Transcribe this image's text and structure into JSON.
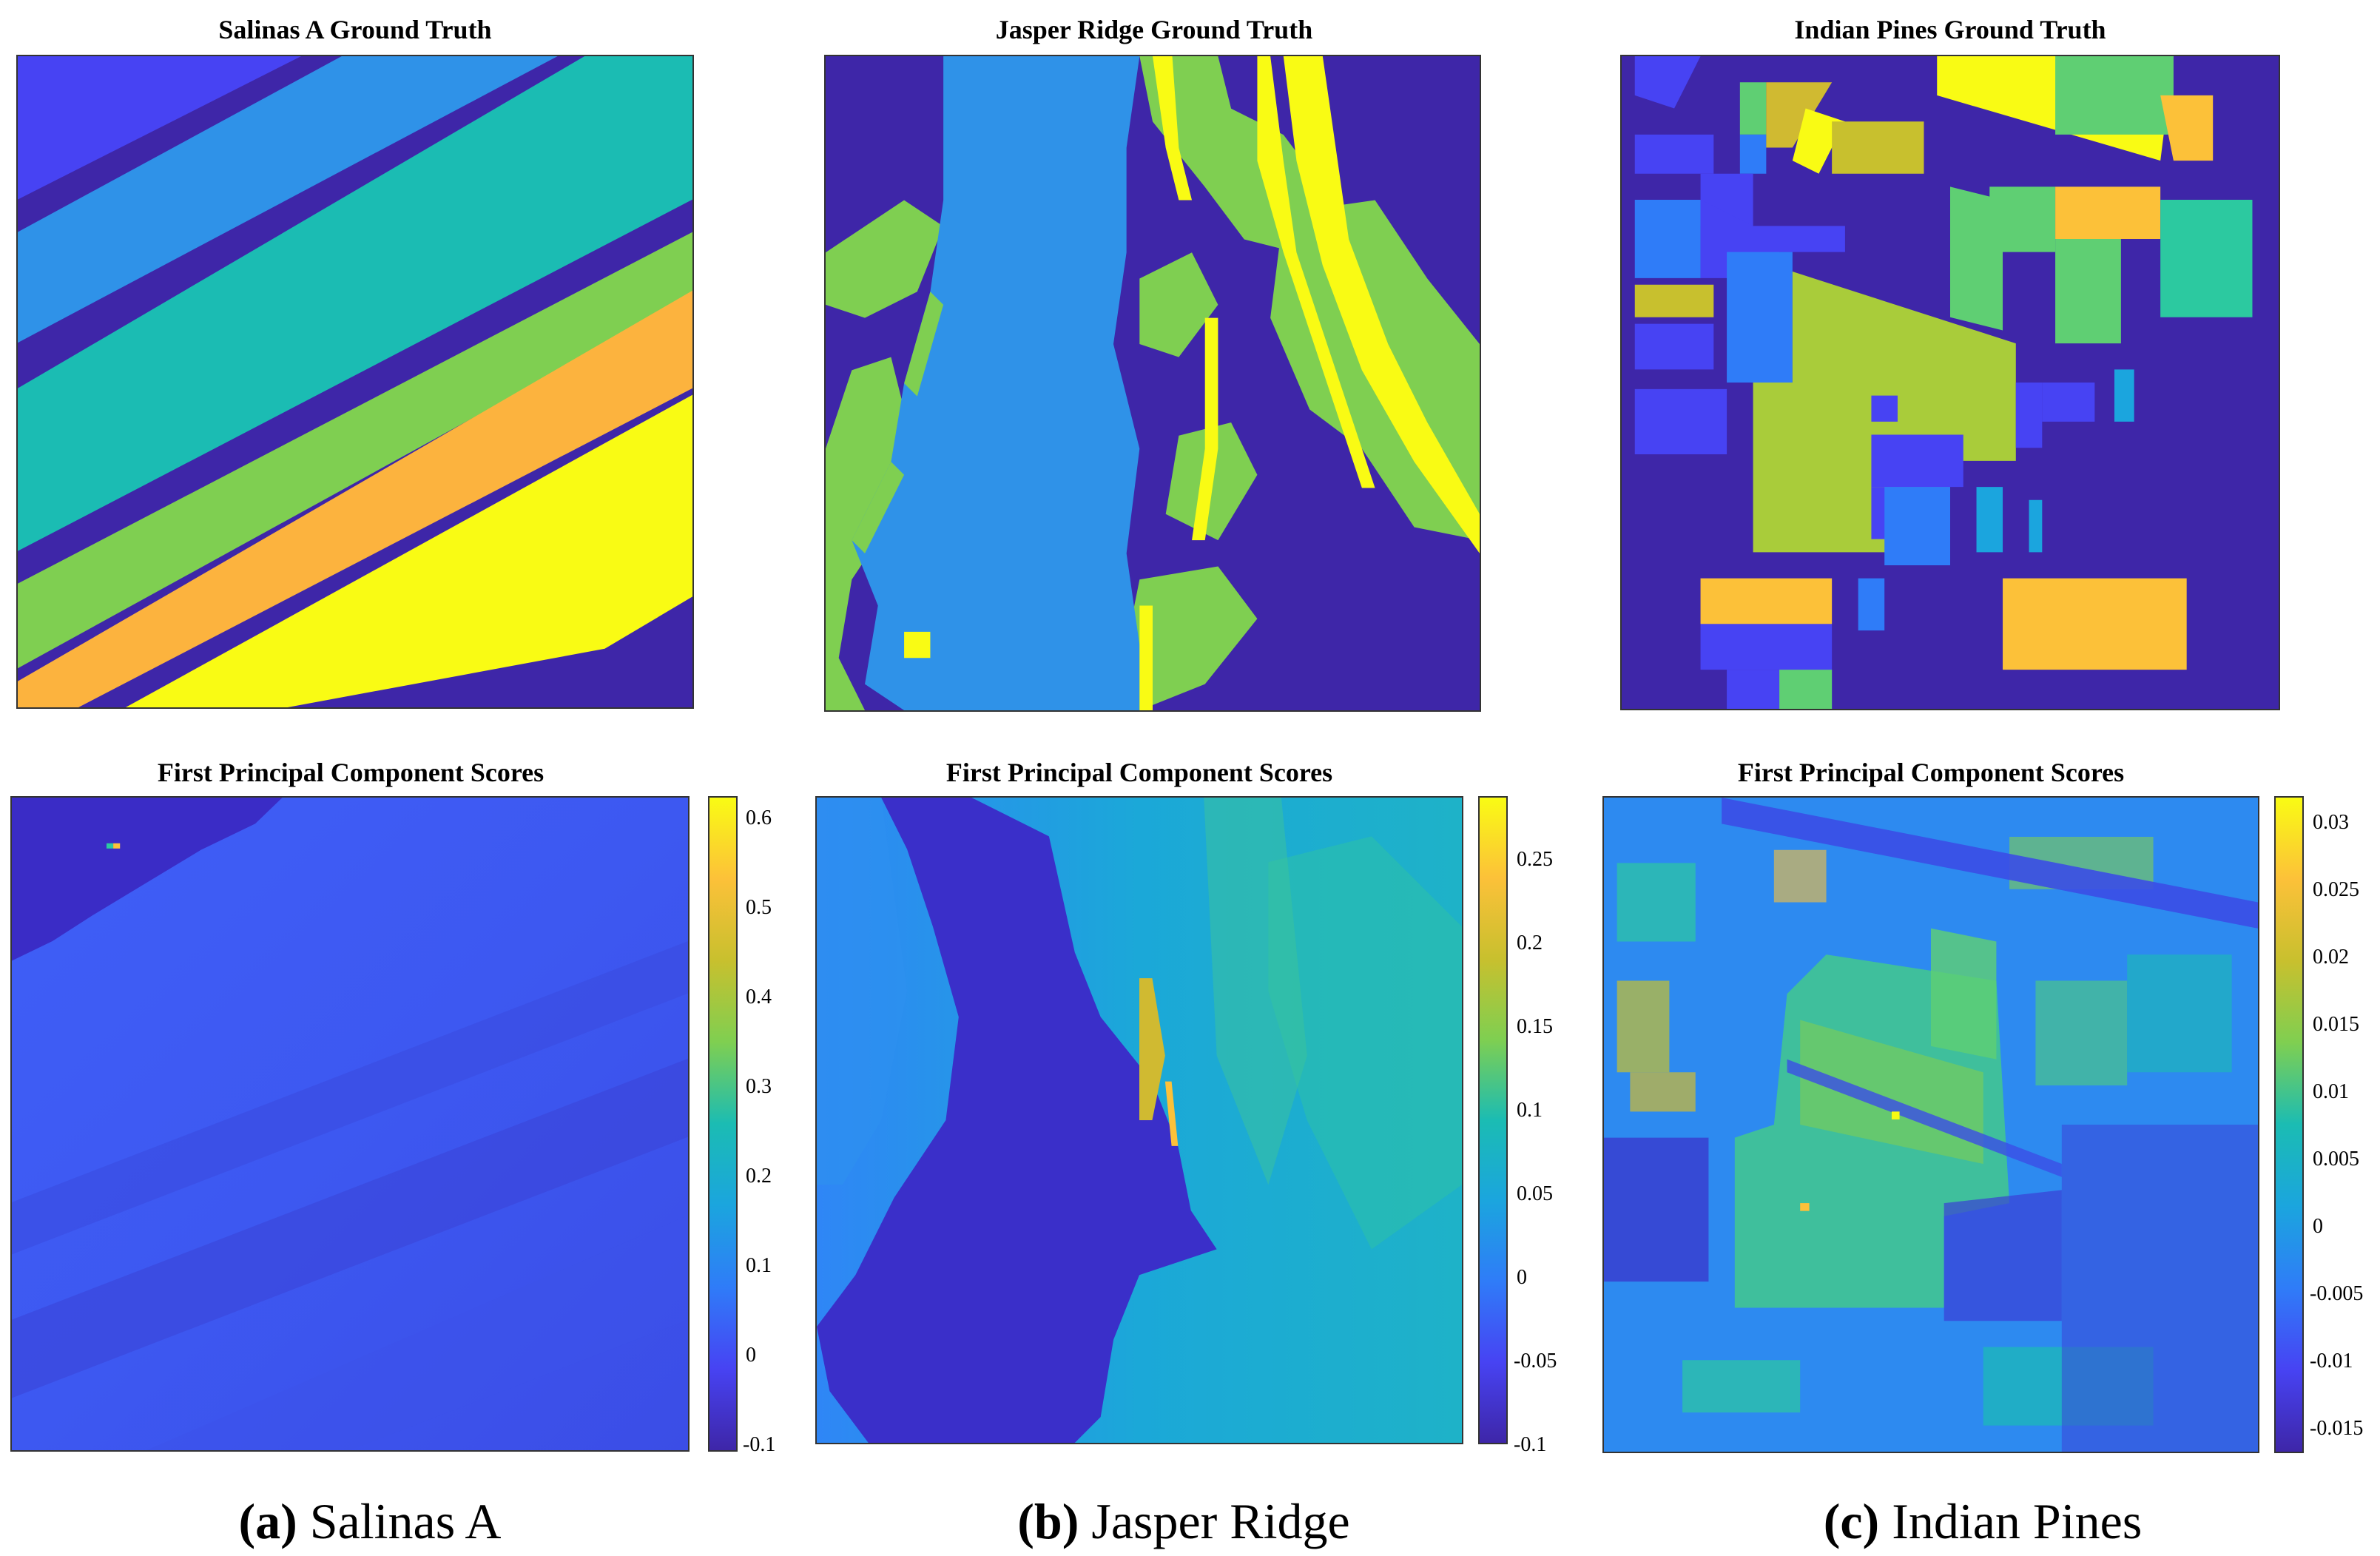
{
  "figure": {
    "colormap": [
      "#3e26a8",
      "#4743f3",
      "#2f7cf8",
      "#1bafd3",
      "#2cc9a0",
      "#7fcf51",
      "#d0ba31",
      "#fcc139",
      "#f9fb14"
    ],
    "panels": [
      {
        "id": "a",
        "ground_truth_title": "Salinas A Ground Truth",
        "pc_title": "First Principal Component Scores",
        "caption_letter": "(a)",
        "caption_name": " Salinas A",
        "ground_truth_classes": [
          "#4743f3",
          "#3e26a8",
          "#2f92e8",
          "#1bbcb3",
          "#7fcf51",
          "#fcb33e",
          "#f9fb14"
        ],
        "colorbar_ticks": [
          "0.6",
          "0.5",
          "0.4",
          "0.3",
          "0.2",
          "0.1",
          "0",
          "-0.1"
        ],
        "colorbar_range": [
          -0.1,
          0.62
        ]
      },
      {
        "id": "b",
        "ground_truth_title": "Jasper Ridge Ground Truth",
        "pc_title": "First Principal Component Scores",
        "caption_letter": "(b)",
        "caption_name": " Jasper Ridge",
        "ground_truth_classes": [
          "#3e26a8",
          "#2f92e8",
          "#7fcf51",
          "#f9fb14"
        ],
        "colorbar_ticks": [
          "0.25",
          "0.2",
          "0.15",
          "0.1",
          "0.05",
          "0",
          "-0.05",
          "-0.1"
        ],
        "colorbar_range": [
          -0.1,
          0.285
        ]
      },
      {
        "id": "c",
        "ground_truth_title": "Indian Pines Ground Truth",
        "pc_title": "First Principal Component Scores",
        "caption_letter": "(c)",
        "caption_name": " Indian Pines",
        "ground_truth_classes": [
          "#3e26a8",
          "#4743f3",
          "#2f7cf8",
          "#1bafd3",
          "#2cc9a0",
          "#5fcf73",
          "#a9cc3a",
          "#d0ba31",
          "#fcc139",
          "#f9fb14"
        ],
        "colorbar_ticks": [
          "0.03",
          "0.025",
          "0.02",
          "0.015",
          "0.01",
          "0.005",
          "0",
          "-0.005",
          "-0.01",
          "-0.015"
        ],
        "colorbar_range": [
          -0.0165,
          0.032
        ]
      }
    ]
  }
}
